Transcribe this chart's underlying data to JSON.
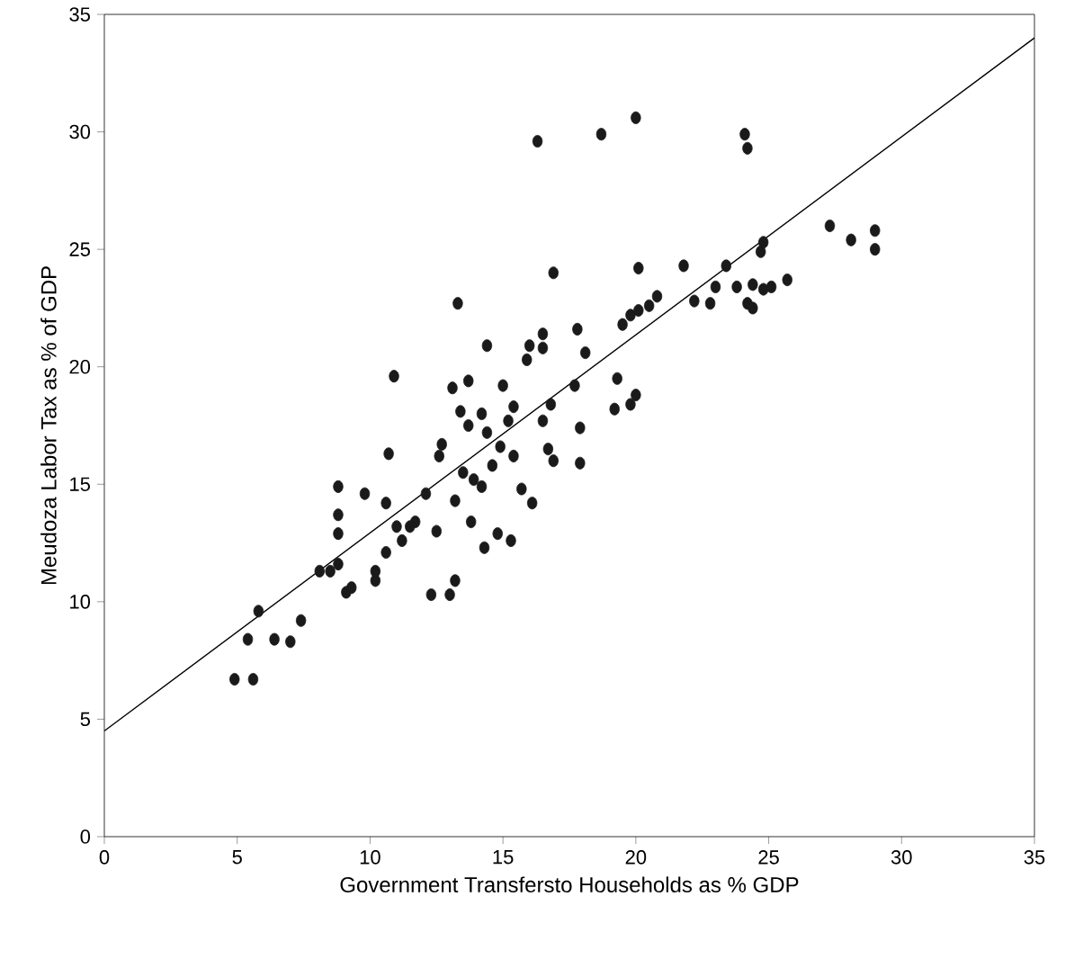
{
  "chart_data": {
    "type": "scatter",
    "xlabel": "Government Transfersto Households  as % GDP",
    "ylabel": "Meudoza Labor Tax as % of GDP",
    "xlim": [
      0,
      35
    ],
    "ylim": [
      0,
      35
    ],
    "xticks": [
      0,
      5,
      10,
      15,
      20,
      25,
      30,
      35
    ],
    "yticks": [
      0,
      5,
      10,
      15,
      20,
      25,
      30,
      35
    ],
    "grid": false,
    "series": [
      {
        "marker": "circle",
        "color": "#1a1a1a",
        "x": [
          4.9,
          5.6,
          5.4,
          5.8,
          6.4,
          7.0,
          7.4,
          8.1,
          8.5,
          8.8,
          8.8,
          8.8,
          8.8,
          9.1,
          9.3,
          9.8,
          10.2,
          10.2,
          10.6,
          10.6,
          10.7,
          10.9,
          11.0,
          11.2,
          11.5,
          11.7,
          12.1,
          12.3,
          12.5,
          12.6,
          12.7,
          13.0,
          13.2,
          13.2,
          13.3,
          13.1,
          13.4,
          13.7,
          13.5,
          13.7,
          13.9,
          14.2,
          14.4,
          13.8,
          14.2,
          14.3,
          14.4,
          14.6,
          14.8,
          15.0,
          14.9,
          15.2,
          15.4,
          15.4,
          15.3,
          15.7,
          16.1,
          15.9,
          16.0,
          16.3,
          16.5,
          16.5,
          16.5,
          16.9,
          16.8,
          16.7,
          16.9,
          17.7,
          17.8,
          17.9,
          17.9,
          18.1,
          18.7,
          19.2,
          19.3,
          19.5,
          19.8,
          19.8,
          20.0,
          20.0,
          20.1,
          20.1,
          20.5,
          20.8,
          21.8,
          22.2,
          22.8,
          23.0,
          23.4,
          23.8,
          24.1,
          24.2,
          24.2,
          24.4,
          24.4,
          24.8,
          24.7,
          24.8,
          25.1,
          25.7,
          27.3,
          28.1,
          29.0,
          29.0
        ],
        "values": [
          6.7,
          6.7,
          8.4,
          9.6,
          8.4,
          8.3,
          9.2,
          11.3,
          11.3,
          11.6,
          12.9,
          14.9,
          13.7,
          10.4,
          10.6,
          14.6,
          10.9,
          11.3,
          12.1,
          14.2,
          16.3,
          19.6,
          13.2,
          12.6,
          13.2,
          13.4,
          14.6,
          10.3,
          13.0,
          16.2,
          16.7,
          10.3,
          10.9,
          14.3,
          22.7,
          19.1,
          18.1,
          19.4,
          15.5,
          17.5,
          15.2,
          18.0,
          17.2,
          13.4,
          14.9,
          12.3,
          20.9,
          15.8,
          12.9,
          19.2,
          16.6,
          17.7,
          18.3,
          16.2,
          12.6,
          14.8,
          14.2,
          20.3,
          20.9,
          29.6,
          21.4,
          20.8,
          17.7,
          24.0,
          18.4,
          16.5,
          16.0,
          19.2,
          21.6,
          17.4,
          15.9,
          20.6,
          29.9,
          18.2,
          19.5,
          21.8,
          22.2,
          18.4,
          18.8,
          30.6,
          24.2,
          22.4,
          22.6,
          23.0,
          24.3,
          22.8,
          22.7,
          23.4,
          24.3,
          23.4,
          29.9,
          29.3,
          22.7,
          23.5,
          22.5,
          23.3,
          24.9,
          25.3,
          23.4,
          23.7,
          26.0,
          25.4,
          25.8,
          25.0
        ]
      },
      {
        "type": "line",
        "marker": "none",
        "color": "#000000",
        "x": [
          0,
          35
        ],
        "values": [
          4.5,
          34
        ]
      }
    ]
  }
}
